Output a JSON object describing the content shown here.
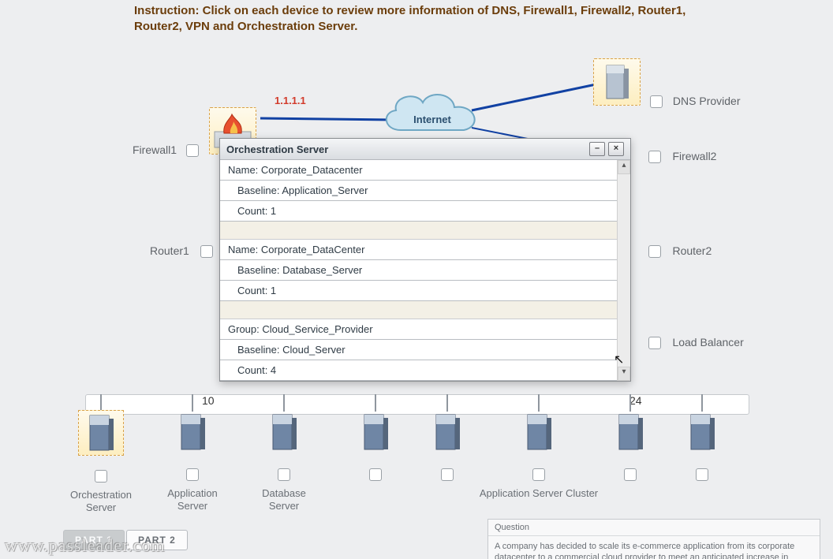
{
  "instruction": "Instruction: Click on each device to review more information of DNS, Firewall1, Firewall2, Router1, Router2, VPN and Orchestration Server.",
  "cloud_label": "Internet",
  "ip1": "1.1.1.1",
  "colors": {
    "bg": "#edeef0",
    "instruction_text": "#6b3d0b",
    "device_border": "#d9a24a",
    "device_fill_top": "#fefaec",
    "device_fill_bottom": "#fdeec0",
    "wire": "#1141a3",
    "ip_text": "#d23b2b",
    "label_text": "#5f6368",
    "popup_border": "#8a8d91",
    "popup_row_border": "#b9bdc2"
  },
  "devices": {
    "firewall1": {
      "label": "Firewall1"
    },
    "firewall2": {
      "label": "Firewall2"
    },
    "dns": {
      "label": "DNS Provider"
    },
    "router1": {
      "label": "Router1"
    },
    "router2": {
      "label": "Router2"
    },
    "loadbal": {
      "label": "Load Balancer"
    }
  },
  "popup": {
    "title": "Orchestration Server",
    "rows": [
      {
        "text": "Name: Corporate_Datacenter",
        "indent": false
      },
      {
        "text": "Baseline: Application_Server",
        "indent": true
      },
      {
        "text": "Count: 1",
        "indent": true
      },
      {
        "gap": true
      },
      {
        "text": "Name: Corporate_DataCenter",
        "indent": false
      },
      {
        "text": "Baseline: Database_Server",
        "indent": true
      },
      {
        "text": "Count: 1",
        "indent": true
      },
      {
        "gap": true
      },
      {
        "text": "Group: Cloud_Service_Provider",
        "indent": false
      },
      {
        "text": "Baseline: Cloud_Server",
        "indent": true
      },
      {
        "text": "Count: 4",
        "indent": true
      }
    ]
  },
  "bus": {
    "left_num": "10",
    "right_num": "24"
  },
  "servers": [
    {
      "label": "Orchestration Server",
      "selected": true
    },
    {
      "label": "Application Server",
      "selected": false
    },
    {
      "label": "Database Server",
      "selected": false
    },
    {
      "label": "",
      "selected": false
    },
    {
      "label": "",
      "selected": false
    },
    {
      "label": "Application Server Cluster",
      "selected": false,
      "wide": true
    },
    {
      "label": "",
      "selected": false
    },
    {
      "label": "",
      "selected": false
    }
  ],
  "server_x": [
    128,
    244,
    360,
    476,
    567,
    683,
    799,
    890
  ],
  "buttons": {
    "part1": "PART 1",
    "part2": "PART 2"
  },
  "question": {
    "heading": "Question",
    "body": "A company has decided to scale its e-commerce application from its corporate datacenter to a commercial cloud provider to meet an anticipated increase in demand"
  },
  "watermark": "www.passleader.com"
}
